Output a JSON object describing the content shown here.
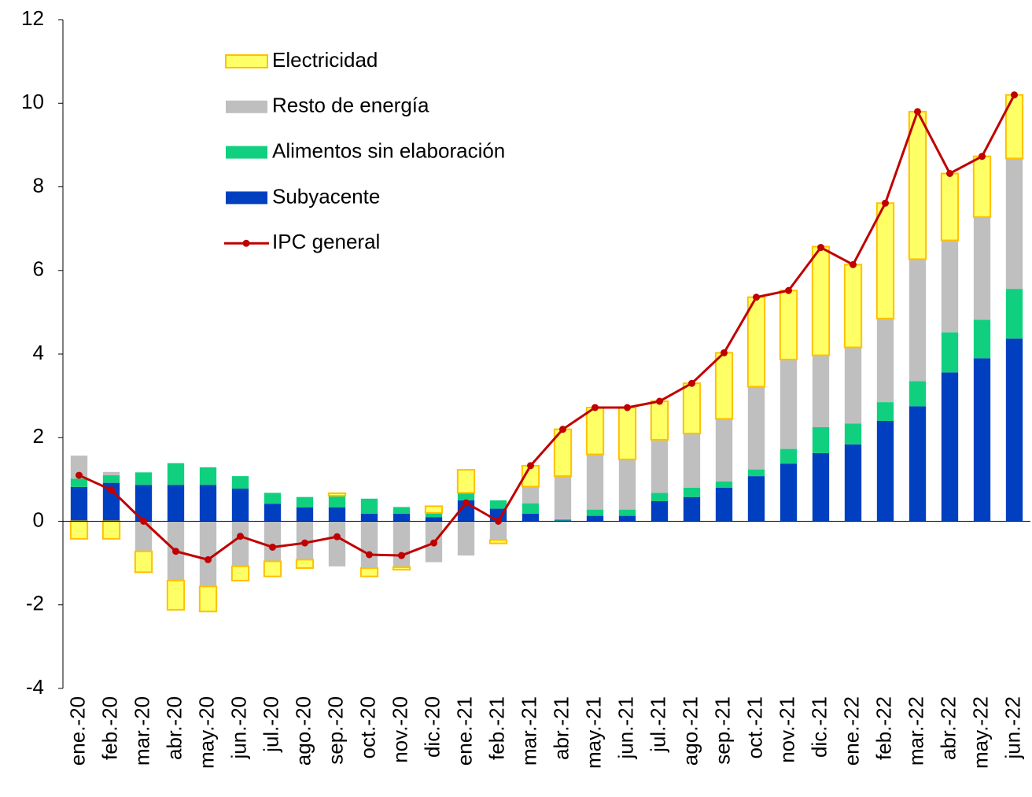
{
  "chart_data": {
    "type": "bar",
    "stacked": true,
    "categories": [
      "ene.-20",
      "feb.-20",
      "mar.-20",
      "abr.-20",
      "may.-20",
      "jun.-20",
      "jul.-20",
      "ago.-20",
      "sep.-20",
      "oct.-20",
      "nov.-20",
      "dic.-20",
      "ene.-21",
      "feb.-21",
      "mar.-21",
      "abr.-21",
      "may.-21",
      "jun.-21",
      "jul.-21",
      "ago.-21",
      "sep.-21",
      "oct.-21",
      "nov.-21",
      "dic.-21",
      "ene.-22",
      "feb.-22",
      "mar.-22",
      "abr.-22",
      "may.-22",
      "jun.-22"
    ],
    "series": [
      {
        "name": "Electricidad",
        "type": "bar",
        "color": "#ffff66",
        "stroke": "#ffc000",
        "values": [
          -0.42,
          -0.42,
          -0.5,
          -0.7,
          -0.6,
          -0.34,
          -0.36,
          -0.2,
          0.06,
          -0.2,
          -0.06,
          0.16,
          0.55,
          -0.08,
          0.5,
          1.12,
          1.12,
          1.24,
          0.92,
          1.2,
          1.58,
          2.14,
          1.65,
          2.6,
          1.98,
          2.76,
          3.53,
          1.6,
          1.45,
          1.52
        ]
      },
      {
        "name": "Resto de energía",
        "type": "bar",
        "color": "#bfbfbf",
        "values": [
          0.55,
          0.08,
          -0.72,
          -1.42,
          -1.56,
          -1.08,
          -0.96,
          -0.92,
          -1.08,
          -1.12,
          -1.1,
          -0.98,
          -0.82,
          -0.45,
          0.4,
          1.03,
          1.32,
          1.2,
          1.27,
          1.3,
          1.5,
          1.98,
          2.14,
          1.72,
          1.82,
          2.0,
          2.92,
          2.2,
          2.46,
          3.12
        ]
      },
      {
        "name": "Alimentos sin elaboración",
        "type": "bar",
        "color": "#10d07f",
        "values": [
          0.2,
          0.18,
          0.3,
          0.52,
          0.42,
          0.3,
          0.26,
          0.25,
          0.28,
          0.36,
          0.16,
          0.1,
          0.18,
          0.2,
          0.25,
          0.03,
          0.15,
          0.15,
          0.2,
          0.22,
          0.15,
          0.16,
          0.35,
          0.62,
          0.5,
          0.45,
          0.6,
          0.96,
          0.92,
          1.19
        ]
      },
      {
        "name": "Subyacente",
        "type": "bar",
        "color": "#0040c0",
        "values": [
          0.82,
          0.92,
          0.87,
          0.87,
          0.87,
          0.78,
          0.42,
          0.33,
          0.33,
          0.18,
          0.18,
          0.1,
          0.5,
          0.3,
          0.18,
          0.02,
          0.13,
          0.13,
          0.48,
          0.58,
          0.8,
          1.08,
          1.38,
          1.63,
          1.84,
          2.4,
          2.75,
          3.56,
          3.9,
          4.37
        ]
      },
      {
        "name": "IPC general",
        "type": "line",
        "color": "#c00000",
        "values": [
          1.1,
          0.75,
          0.0,
          -0.72,
          -0.92,
          -0.36,
          -0.62,
          -0.52,
          -0.37,
          -0.8,
          -0.82,
          -0.52,
          0.44,
          0.0,
          1.33,
          2.2,
          2.72,
          2.72,
          2.87,
          3.3,
          4.03,
          5.36,
          5.52,
          6.55,
          6.14,
          7.61,
          9.8,
          8.32,
          8.73,
          10.2
        ]
      }
    ],
    "ylim": [
      -4,
      12
    ],
    "yticks": [
      -4,
      -2,
      0,
      2,
      4,
      6,
      8,
      10,
      12
    ],
    "grid": false
  }
}
